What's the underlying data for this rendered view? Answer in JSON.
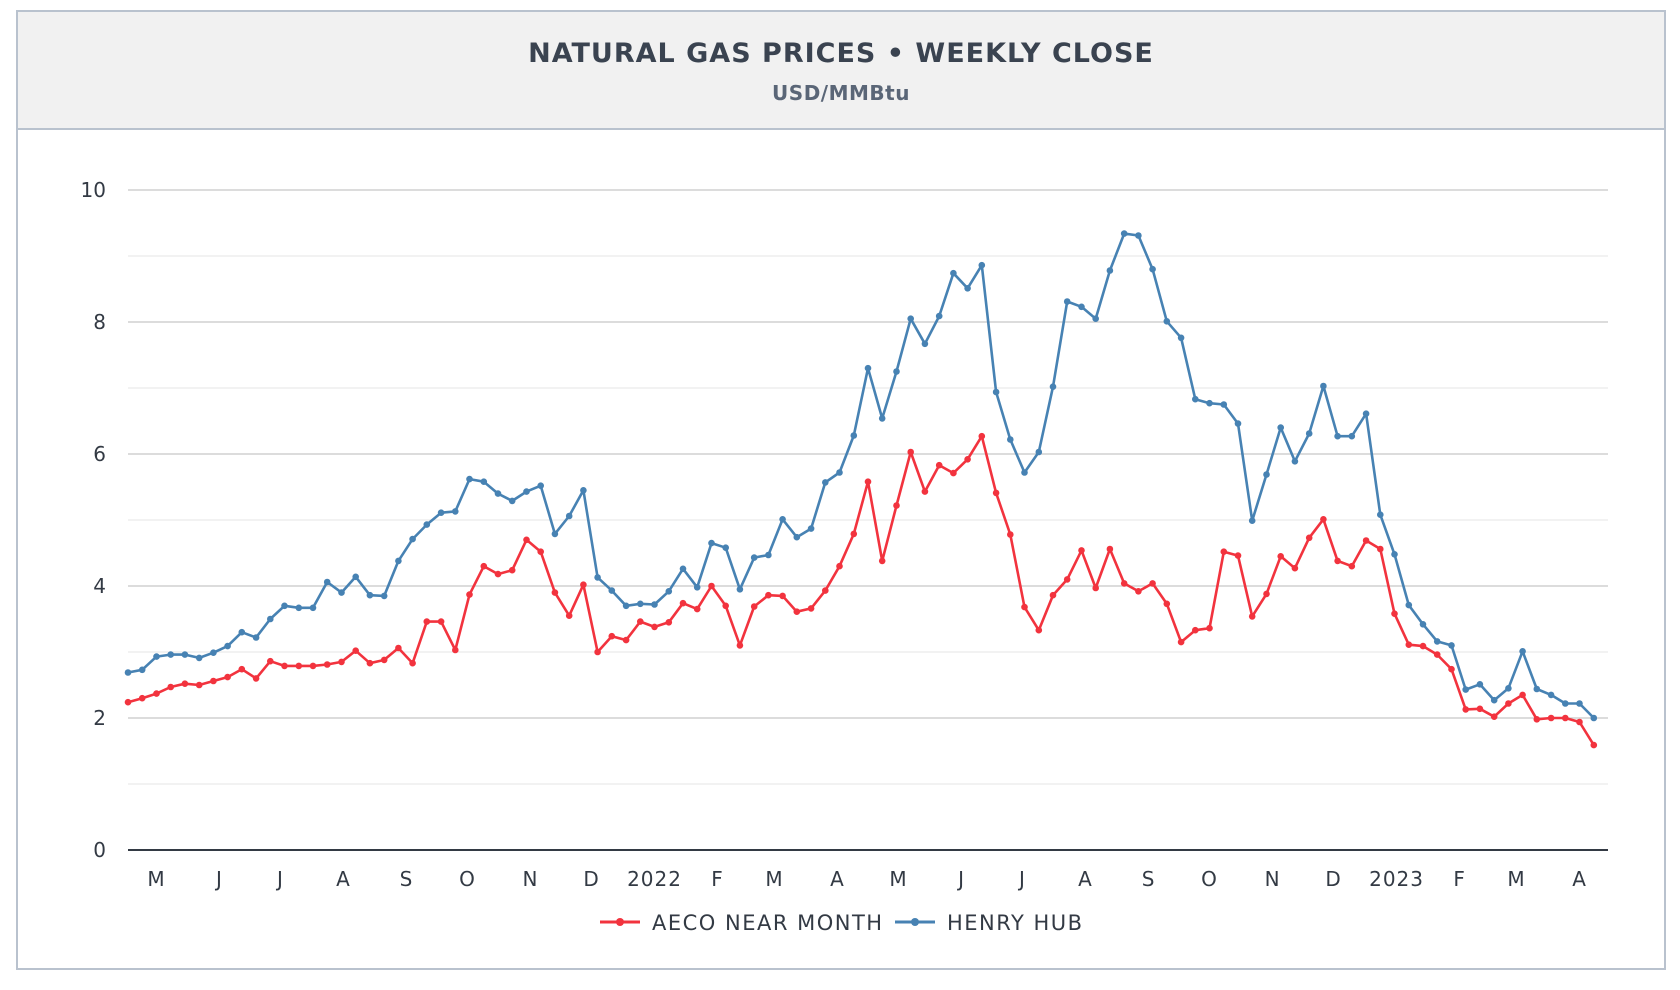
{
  "header": {
    "title": "NATURAL GAS PRICES • WEEKLY CLOSE",
    "subtitle": "USD/MMBtu"
  },
  "chart_data": {
    "type": "line",
    "title": "NATURAL GAS PRICES • WEEKLY CLOSE",
    "subtitle": "USD/MMBtu",
    "ylim": [
      0,
      10
    ],
    "y_ticks": [
      0,
      2,
      4,
      6,
      8,
      10
    ],
    "grid": true,
    "legend_position": "bottom",
    "x_tick_labels": [
      "M",
      "J",
      "J",
      "A",
      "S",
      "O",
      "N",
      "D",
      "2022",
      "F",
      "M",
      "A",
      "M",
      "J",
      "J",
      "A",
      "S",
      "O",
      "N",
      "D",
      "2023",
      "F",
      "M",
      "A"
    ],
    "x_tick_dates": [
      "2021-05-01",
      "2021-06-01",
      "2021-07-01",
      "2021-08-01",
      "2021-09-01",
      "2021-10-01",
      "2021-11-01",
      "2021-12-01",
      "2022-01-01",
      "2022-02-01",
      "2022-03-01",
      "2022-04-01",
      "2022-05-01",
      "2022-06-01",
      "2022-07-01",
      "2022-08-01",
      "2022-09-01",
      "2022-10-01",
      "2022-11-01",
      "2022-12-01",
      "2023-01-01",
      "2023-02-01",
      "2023-03-01",
      "2023-04-01"
    ],
    "series": [
      {
        "name": "AECO NEAR MONTH",
        "color": "#f2333e",
        "values": [
          2.24,
          2.3,
          2.37,
          2.47,
          2.52,
          2.5,
          2.56,
          2.62,
          2.74,
          2.6,
          2.86,
          2.79,
          2.79,
          2.79,
          2.81,
          2.85,
          3.02,
          2.83,
          2.88,
          3.06,
          2.83,
          3.46,
          3.46,
          3.03,
          3.87,
          4.3,
          4.18,
          4.24,
          4.7,
          4.52,
          3.9,
          3.55,
          4.02,
          3.0,
          3.24,
          3.18,
          3.46,
          3.38,
          3.45,
          3.74,
          3.65,
          4.0,
          3.7,
          3.1,
          3.69,
          3.86,
          3.85,
          3.61,
          3.66,
          3.93,
          4.3,
          4.79,
          5.58,
          4.38,
          5.22,
          6.03,
          5.43,
          5.83,
          5.71,
          5.92,
          6.27,
          5.41,
          4.78,
          3.68,
          3.33,
          3.86,
          4.1,
          4.54,
          3.97,
          4.56,
          4.04,
          3.92,
          4.04,
          3.73,
          3.15,
          3.33,
          3.36,
          4.52,
          4.46,
          3.54,
          3.88,
          4.45,
          4.27,
          4.73,
          5.01,
          4.38,
          4.3,
          4.69,
          4.56,
          3.58,
          3.11,
          3.09,
          2.96,
          2.74,
          2.13,
          2.14,
          2.02,
          2.22,
          2.35,
          1.98,
          2.0,
          2.0,
          1.94,
          1.59
        ]
      },
      {
        "name": "HENRY HUB",
        "color": "#4782b3",
        "values": [
          2.69,
          2.73,
          2.93,
          2.96,
          2.96,
          2.91,
          2.99,
          3.09,
          3.3,
          3.22,
          3.5,
          3.7,
          3.67,
          3.67,
          4.06,
          3.9,
          4.14,
          3.86,
          3.85,
          4.38,
          4.71,
          4.93,
          5.11,
          5.13,
          5.62,
          5.58,
          5.4,
          5.29,
          5.43,
          5.52,
          4.79,
          5.06,
          5.45,
          4.13,
          3.93,
          3.7,
          3.73,
          3.72,
          3.92,
          4.26,
          3.98,
          4.65,
          4.58,
          3.95,
          4.43,
          4.47,
          5.01,
          4.74,
          4.87,
          5.57,
          5.72,
          6.28,
          7.3,
          6.54,
          7.25,
          8.05,
          7.67,
          8.09,
          8.74,
          8.51,
          8.86,
          6.94,
          6.22,
          5.72,
          6.03,
          7.02,
          8.31,
          8.23,
          8.05,
          8.78,
          9.34,
          9.31,
          8.8,
          8.01,
          7.76,
          6.83,
          6.77,
          6.75,
          6.46,
          4.99,
          5.69,
          6.4,
          5.89,
          6.31,
          7.03,
          6.27,
          6.27,
          6.61,
          5.08,
          4.48,
          3.71,
          3.42,
          3.16,
          3.1,
          2.43,
          2.51,
          2.27,
          2.45,
          3.01,
          2.44,
          2.35,
          2.22,
          2.22,
          2.0
        ]
      }
    ]
  }
}
